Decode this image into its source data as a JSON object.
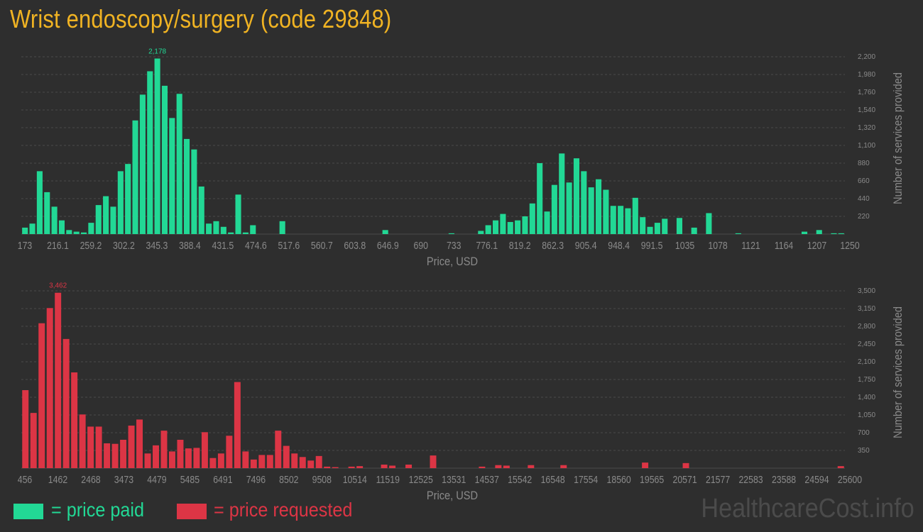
{
  "title": "Wrist endoscopy/surgery (code 29848)",
  "legend": {
    "paid_label": "= price paid",
    "requested_label": "= price requested",
    "paid_color": "#22d895",
    "requested_color": "#dc3545"
  },
  "watermark": "HealthcareCost.info",
  "colors": {
    "background": "#2e2e2e",
    "title": "#f0b323",
    "axis_text": "#8a8a8a",
    "grid": "#4a4a4a"
  },
  "chart_data": [
    {
      "type": "bar",
      "id": "paid",
      "xlabel": "Price, USD",
      "ylabel": "Number of services provided",
      "x_tick_labels": [
        "173",
        "216.1",
        "259.2",
        "302.2",
        "345.3",
        "388.4",
        "431.5",
        "474.6",
        "517.6",
        "560.7",
        "603.8",
        "646.9",
        "690",
        "733",
        "776.1",
        "819.2",
        "862.3",
        "905.4",
        "948.4",
        "991.5",
        "1035",
        "1078",
        "1121",
        "1164",
        "1207",
        "1250"
      ],
      "y_ticks": [
        220,
        440,
        660,
        880,
        1100,
        1320,
        1540,
        1760,
        1980,
        2200
      ],
      "y_tick_labels": [
        "220",
        "440",
        "660",
        "880",
        "1,100",
        "1,320",
        "1,540",
        "1,760",
        "1,980",
        "2,200"
      ],
      "ylim": [
        0,
        2200
      ],
      "peak_label": "2,178",
      "peak_index": 18,
      "grid": true,
      "color": "#22d895",
      "values": [
        80,
        130,
        780,
        520,
        340,
        170,
        50,
        30,
        20,
        140,
        360,
        470,
        340,
        780,
        870,
        1410,
        1730,
        2020,
        2178,
        1840,
        1440,
        1740,
        1180,
        1050,
        590,
        130,
        160,
        90,
        20,
        490,
        20,
        110,
        0,
        0,
        0,
        160,
        0,
        0,
        0,
        0,
        0,
        0,
        0,
        0,
        0,
        0,
        0,
        0,
        0,
        50,
        0,
        0,
        0,
        0,
        0,
        0,
        0,
        0,
        10,
        0,
        0,
        0,
        40,
        110,
        170,
        250,
        150,
        170,
        220,
        380,
        880,
        280,
        610,
        1000,
        640,
        940,
        780,
        580,
        680,
        550,
        350,
        350,
        320,
        450,
        210,
        90,
        140,
        190,
        0,
        200,
        0,
        80,
        0,
        260,
        0,
        0,
        0,
        10,
        0,
        0,
        0,
        0,
        0,
        0,
        0,
        0,
        30,
        0,
        50,
        0,
        10,
        10
      ]
    },
    {
      "type": "bar",
      "id": "requested",
      "xlabel": "Price, USD",
      "ylabel": "Number of services provided",
      "x_tick_labels": [
        "456",
        "1462",
        "2468",
        "3473",
        "4479",
        "5485",
        "6491",
        "7496",
        "8502",
        "9508",
        "10514",
        "11519",
        "12525",
        "13531",
        "14537",
        "15542",
        "16548",
        "17554",
        "18560",
        "19565",
        "20571",
        "21577",
        "22583",
        "23588",
        "24594",
        "25600"
      ],
      "y_ticks": [
        350,
        700,
        1050,
        1400,
        1750,
        2100,
        2450,
        2800,
        3150,
        3500
      ],
      "y_tick_labels": [
        "350",
        "700",
        "1,050",
        "1,400",
        "1,750",
        "2,100",
        "2,450",
        "2,800",
        "3,150",
        "3,500"
      ],
      "ylim": [
        0,
        3500
      ],
      "peak_label": "3,462",
      "peak_index": 4,
      "grid": true,
      "color": "#dc3545",
      "values": [
        1540,
        1090,
        2860,
        3160,
        3462,
        2550,
        1890,
        1060,
        820,
        820,
        490,
        480,
        560,
        840,
        960,
        290,
        450,
        740,
        330,
        560,
        390,
        400,
        710,
        200,
        290,
        640,
        1700,
        330,
        170,
        260,
        260,
        740,
        440,
        290,
        220,
        150,
        240,
        30,
        20,
        0,
        30,
        40,
        0,
        0,
        70,
        50,
        0,
        70,
        0,
        0,
        250,
        0,
        0,
        0,
        0,
        0,
        30,
        0,
        60,
        50,
        0,
        0,
        60,
        0,
        0,
        0,
        60,
        0,
        0,
        0,
        0,
        0,
        0,
        0,
        0,
        0,
        110,
        0,
        0,
        0,
        0,
        100,
        0,
        0,
        0,
        0,
        0,
        0,
        0,
        0,
        0,
        0,
        0,
        0,
        0,
        0,
        0,
        0,
        0,
        0,
        40
      ]
    }
  ]
}
